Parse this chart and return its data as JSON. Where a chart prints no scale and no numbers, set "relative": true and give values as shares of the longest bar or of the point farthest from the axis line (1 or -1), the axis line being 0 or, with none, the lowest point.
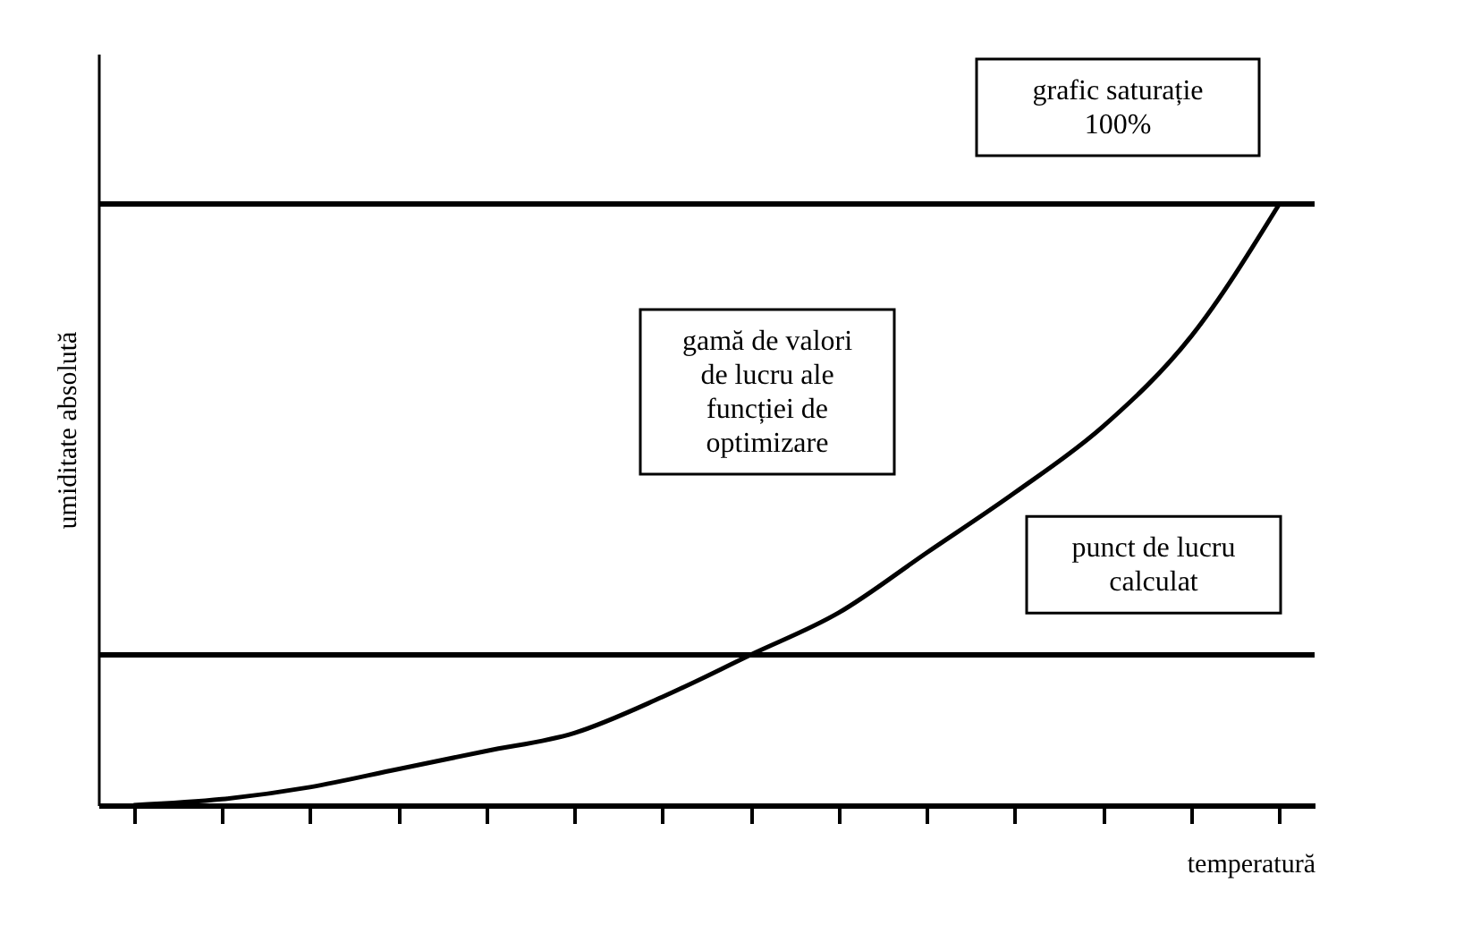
{
  "chart_data": {
    "type": "line",
    "relative": true,
    "xlabel": "temperatură",
    "ylabel": "umiditate absolută",
    "categories": [
      null,
      null,
      null,
      null,
      null,
      null,
      null,
      null,
      null,
      null,
      null,
      null,
      null,
      null
    ],
    "series": [
      {
        "color": "#000000",
        "values": [
          0,
          0.01,
          0.03,
          0.06,
          0.09,
          0.12,
          0.18,
          0.25,
          0.32,
          0.42,
          0.52,
          0.63,
          0.78,
          1
        ]
      }
    ],
    "ref_lines": [
      {
        "axis": "y",
        "value": 1,
        "color": "#000000"
      },
      {
        "axis": "y",
        "value": 0.25,
        "color": "#000000"
      }
    ],
    "annotations": [
      "grafic saturație\n100%",
      "gamă de valori\nde lucru ale\nfuncției de\noptimizare",
      "punct de lucru\ncalculat"
    ],
    "marker": "none",
    "grid": false
  }
}
